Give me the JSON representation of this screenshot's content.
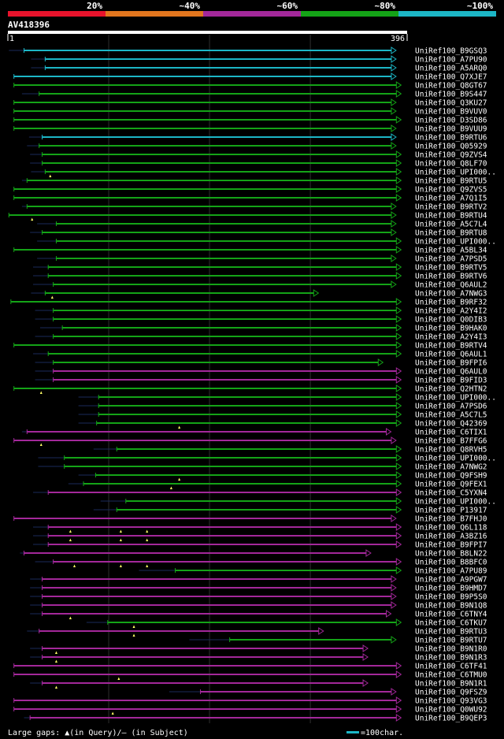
{
  "chart_data": {
    "type": "alignment-overview",
    "title": "AV418396",
    "query_length": 396,
    "axis_start_label": "1",
    "axis_end_label": "396",
    "identity_legend": [
      {
        "label": "20%",
        "color": "#e8132c"
      },
      {
        "label": "~40%",
        "color": "#e2761e"
      },
      {
        "label": "~60%",
        "color": "#a3289a"
      },
      {
        "label": "~80%",
        "color": "#14a317"
      },
      {
        "label": "~100%",
        "color": "#1cb6c6"
      }
    ],
    "footer_gaps_text": "Large gaps: ▲(in Query)/— (in Subject)",
    "footer_scale_text": "=100char.",
    "hits": [
      {
        "name": "UniRef100_B9GSQ3",
        "start": 16,
        "end": 385,
        "color": "cyan",
        "stub": 1,
        "gaps": []
      },
      {
        "name": "UniRef100_A7PU90",
        "start": 37,
        "end": 385,
        "color": "cyan",
        "stub": 23,
        "gaps": []
      },
      {
        "name": "UniRef100_A5ARQ0",
        "start": 37,
        "end": 385,
        "color": "cyan",
        "stub": 23,
        "gaps": []
      },
      {
        "name": "UniRef100_Q7XJE7",
        "start": 6,
        "end": 385,
        "color": "cyan",
        "stub": 6,
        "gaps": []
      },
      {
        "name": "UniRef100_Q8GT67",
        "start": 6,
        "end": 390,
        "color": "green",
        "stub": 6,
        "gaps": []
      },
      {
        "name": "UniRef100_B9S447",
        "start": 31,
        "end": 390,
        "color": "green",
        "stub": 14,
        "gaps": []
      },
      {
        "name": "UniRef100_Q3KU27",
        "start": 6,
        "end": 385,
        "color": "green",
        "stub": 6,
        "gaps": []
      },
      {
        "name": "UniRef100_B9VUV0",
        "start": 6,
        "end": 385,
        "color": "green",
        "stub": 6,
        "gaps": []
      },
      {
        "name": "UniRef100_D3SD86",
        "start": 6,
        "end": 390,
        "color": "green",
        "stub": 6,
        "gaps": []
      },
      {
        "name": "UniRef100_B9VUU9",
        "start": 6,
        "end": 385,
        "color": "green",
        "stub": 6,
        "gaps": []
      },
      {
        "name": "UniRef100_B9RTU6",
        "start": 34,
        "end": 385,
        "color": "cyan",
        "stub": 21,
        "gaps": []
      },
      {
        "name": "UniRef100_Q05929",
        "start": 31,
        "end": 385,
        "color": "green",
        "stub": 19,
        "gaps": []
      },
      {
        "name": "UniRef100_Q9ZVS4",
        "start": 34,
        "end": 390,
        "color": "green",
        "stub": 22,
        "gaps": []
      },
      {
        "name": "UniRef100_Q8LF70",
        "start": 34,
        "end": 390,
        "color": "green",
        "stub": 22,
        "gaps": []
      },
      {
        "name": "UniRef100_UPI000..",
        "start": 37,
        "end": 390,
        "color": "green",
        "stub": 23,
        "gaps": [
          42
        ]
      },
      {
        "name": "UniRef100_B9RTU5",
        "start": 19,
        "end": 390,
        "color": "green",
        "stub": 14,
        "gaps": []
      },
      {
        "name": "UniRef100_Q9ZVS5",
        "start": 6,
        "end": 390,
        "color": "green",
        "stub": 6,
        "gaps": []
      },
      {
        "name": "UniRef100_A7Q1I5",
        "start": 6,
        "end": 390,
        "color": "green",
        "stub": 6,
        "gaps": []
      },
      {
        "name": "UniRef100_B9RTV2",
        "start": 19,
        "end": 385,
        "color": "green",
        "stub": 14,
        "gaps": []
      },
      {
        "name": "UniRef100_B9RTU4",
        "start": 1,
        "end": 385,
        "color": "green",
        "stub": 1,
        "gaps": [
          24
        ]
      },
      {
        "name": "UniRef100_A5C7L4",
        "start": 48,
        "end": 385,
        "color": "green",
        "stub": 29,
        "gaps": []
      },
      {
        "name": "UniRef100_B9RTU8",
        "start": 34,
        "end": 385,
        "color": "green",
        "stub": 22,
        "gaps": []
      },
      {
        "name": "UniRef100_UPI000..",
        "start": 48,
        "end": 390,
        "color": "green",
        "stub": 29,
        "gaps": []
      },
      {
        "name": "UniRef100_A5BL34",
        "start": 6,
        "end": 390,
        "color": "green",
        "stub": 6,
        "gaps": []
      },
      {
        "name": "UniRef100_A7PSD5",
        "start": 48,
        "end": 385,
        "color": "green",
        "stub": 29,
        "gaps": []
      },
      {
        "name": "UniRef100_B9RTV5",
        "start": 40,
        "end": 390,
        "color": "green",
        "stub": 25,
        "gaps": []
      },
      {
        "name": "UniRef100_B9RTV6",
        "start": 40,
        "end": 390,
        "color": "green",
        "stub": 25,
        "gaps": []
      },
      {
        "name": "UniRef100_Q6AUL2",
        "start": 45,
        "end": 385,
        "color": "green",
        "stub": 25,
        "gaps": []
      },
      {
        "name": "UniRef100_A7NWG3",
        "start": 37,
        "end": 308,
        "color": "green",
        "stub": 23,
        "gaps": [
          44
        ]
      },
      {
        "name": "UniRef100_B9RF32",
        "start": 3,
        "end": 390,
        "color": "green",
        "stub": 3,
        "gaps": []
      },
      {
        "name": "UniRef100_A2Y4I2",
        "start": 45,
        "end": 390,
        "color": "green",
        "stub": 27,
        "gaps": []
      },
      {
        "name": "UniRef100_Q0DIB3",
        "start": 45,
        "end": 390,
        "color": "green",
        "stub": 27,
        "gaps": []
      },
      {
        "name": "UniRef100_B9HAK0",
        "start": 54,
        "end": 390,
        "color": "green",
        "stub": 32,
        "gaps": []
      },
      {
        "name": "UniRef100_A2Y4I3",
        "start": 45,
        "end": 390,
        "color": "green",
        "stub": 27,
        "gaps": []
      },
      {
        "name": "UniRef100_B9RTV4",
        "start": 6,
        "end": 390,
        "color": "green",
        "stub": 6,
        "gaps": []
      },
      {
        "name": "UniRef100_Q6AUL1",
        "start": 40,
        "end": 390,
        "color": "green",
        "stub": 25,
        "gaps": []
      },
      {
        "name": "UniRef100_B9FPI6",
        "start": 45,
        "end": 372,
        "color": "green",
        "stub": 27,
        "gaps": []
      },
      {
        "name": "UniRef100_Q6AUL0",
        "start": 45,
        "end": 390,
        "color": "purple",
        "stub": 27,
        "gaps": []
      },
      {
        "name": "UniRef100_B9FID3",
        "start": 45,
        "end": 390,
        "color": "purple",
        "stub": 27,
        "gaps": []
      },
      {
        "name": "UniRef100_Q2HTN2",
        "start": 6,
        "end": 390,
        "color": "green",
        "stub": 6,
        "gaps": [
          33
        ]
      },
      {
        "name": "UniRef100_UPI000..",
        "start": 90,
        "end": 390,
        "color": "green",
        "stub": 70,
        "gaps": []
      },
      {
        "name": "UniRef100_A7PSD6",
        "start": 90,
        "end": 390,
        "color": "green",
        "stub": 70,
        "gaps": []
      },
      {
        "name": "UniRef100_A5C7L5",
        "start": 90,
        "end": 390,
        "color": "green",
        "stub": 70,
        "gaps": []
      },
      {
        "name": "UniRef100_Q42369",
        "start": 88,
        "end": 390,
        "color": "green",
        "stub": 70,
        "gaps": [
          170
        ]
      },
      {
        "name": "UniRef100_C6TIX1",
        "start": 19,
        "end": 380,
        "color": "purple",
        "stub": 14,
        "gaps": []
      },
      {
        "name": "UniRef100_B7FFG6",
        "start": 6,
        "end": 385,
        "color": "purple",
        "stub": 6,
        "gaps": [
          33
        ]
      },
      {
        "name": "UniRef100_Q8RVH5",
        "start": 108,
        "end": 390,
        "color": "green",
        "stub": 85,
        "gaps": []
      },
      {
        "name": "UniRef100_UPI000..",
        "start": 56,
        "end": 390,
        "color": "green",
        "stub": 30,
        "gaps": []
      },
      {
        "name": "UniRef100_A7NWG2",
        "start": 56,
        "end": 390,
        "color": "green",
        "stub": 30,
        "gaps": []
      },
      {
        "name": "UniRef100_Q9FSH9",
        "start": 87,
        "end": 390,
        "color": "green",
        "stub": 70,
        "gaps": [
          170
        ]
      },
      {
        "name": "UniRef100_Q9FEX1",
        "start": 75,
        "end": 390,
        "color": "green",
        "stub": 60,
        "gaps": [
          162
        ]
      },
      {
        "name": "UniRef100_C5YXN4",
        "start": 40,
        "end": 390,
        "color": "purple",
        "stub": 25,
        "gaps": []
      },
      {
        "name": "UniRef100_UPI000..",
        "start": 117,
        "end": 390,
        "color": "green",
        "stub": 92,
        "gaps": []
      },
      {
        "name": "UniRef100_P13917",
        "start": 108,
        "end": 390,
        "color": "green",
        "stub": 85,
        "gaps": []
      },
      {
        "name": "UniRef100_B7FHJ0",
        "start": 6,
        "end": 385,
        "color": "purple",
        "stub": 6,
        "gaps": []
      },
      {
        "name": "UniRef100_Q6L118",
        "start": 40,
        "end": 390,
        "color": "purple",
        "stub": 25,
        "gaps": [
          62,
          112,
          138
        ]
      },
      {
        "name": "UniRef100_A3BZ16",
        "start": 40,
        "end": 390,
        "color": "purple",
        "stub": 25,
        "gaps": [
          62,
          112,
          138
        ]
      },
      {
        "name": "UniRef100_B9FPI7",
        "start": 40,
        "end": 390,
        "color": "purple",
        "stub": 25,
        "gaps": []
      },
      {
        "name": "UniRef100_B8LN22",
        "start": 16,
        "end": 360,
        "color": "purple",
        "stub": 12,
        "gaps": []
      },
      {
        "name": "UniRef100_B8BFC0",
        "start": 45,
        "end": 390,
        "color": "purple",
        "stub": 27,
        "gaps": [
          66,
          112,
          138
        ]
      },
      {
        "name": "UniRef100_A7PU89",
        "start": 166,
        "end": 390,
        "color": "green",
        "stub": 130,
        "gaps": []
      },
      {
        "name": "UniRef100_A9PGW7",
        "start": 34,
        "end": 385,
        "color": "purple",
        "stub": 22,
        "gaps": []
      },
      {
        "name": "UniRef100_B9HMD7",
        "start": 34,
        "end": 385,
        "color": "purple",
        "stub": 22,
        "gaps": []
      },
      {
        "name": "UniRef100_B9P5S0",
        "start": 34,
        "end": 385,
        "color": "purple",
        "stub": 22,
        "gaps": []
      },
      {
        "name": "UniRef100_B9N1Q8",
        "start": 34,
        "end": 385,
        "color": "purple",
        "stub": 22,
        "gaps": []
      },
      {
        "name": "UniRef100_C6TNY4",
        "start": 34,
        "end": 380,
        "color": "purple",
        "stub": 22,
        "gaps": [
          62
        ]
      },
      {
        "name": "UniRef100_C6TKU7",
        "start": 99,
        "end": 390,
        "color": "green",
        "stub": 78,
        "gaps": [
          125
        ]
      },
      {
        "name": "UniRef100_B9RTU3",
        "start": 31,
        "end": 313,
        "color": "purple",
        "stub": 19,
        "gaps": [
          125
        ]
      },
      {
        "name": "UniRef100_B9RTU7",
        "start": 220,
        "end": 385,
        "color": "green",
        "stub": 180,
        "gaps": []
      },
      {
        "name": "UniRef100_B9N1R0",
        "start": 34,
        "end": 357,
        "color": "purple",
        "stub": 22,
        "gaps": [
          48
        ]
      },
      {
        "name": "UniRef100_B9N1R3",
        "start": 34,
        "end": 357,
        "color": "purple",
        "stub": 22,
        "gaps": [
          48
        ]
      },
      {
        "name": "UniRef100_C6TF41",
        "start": 6,
        "end": 390,
        "color": "purple",
        "stub": 6,
        "gaps": []
      },
      {
        "name": "UniRef100_C6TMU0",
        "start": 6,
        "end": 390,
        "color": "purple",
        "stub": 6,
        "gaps": [
          110
        ]
      },
      {
        "name": "UniRef100_B9N1R1",
        "start": 34,
        "end": 357,
        "color": "purple",
        "stub": 22,
        "gaps": [
          48
        ]
      },
      {
        "name": "UniRef100_Q9FSZ9",
        "start": 191,
        "end": 385,
        "color": "purple",
        "stub": 160,
        "gaps": []
      },
      {
        "name": "UniRef100_Q93VG3",
        "start": 6,
        "end": 390,
        "color": "purple",
        "stub": 6,
        "gaps": []
      },
      {
        "name": "UniRef100_Q0WU92",
        "start": 6,
        "end": 390,
        "color": "purple",
        "stub": 6,
        "gaps": [
          104
        ]
      },
      {
        "name": "UniRef100_B9QEP3",
        "start": 22,
        "end": 390,
        "color": "purple",
        "stub": 16,
        "gaps": []
      }
    ]
  }
}
